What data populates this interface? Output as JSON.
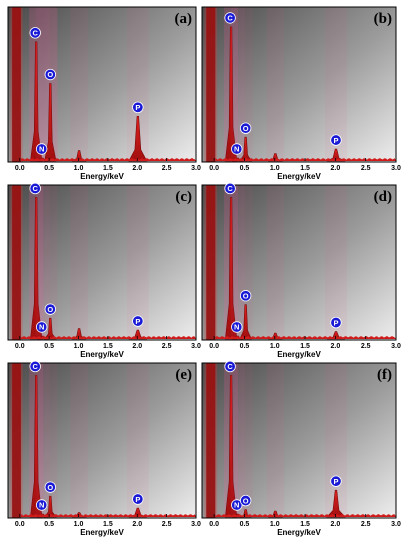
{
  "figure": {
    "x_axis_label": "Energy/keV",
    "x_ticks": [
      "0.0",
      "0.5",
      "1.0",
      "1.5",
      "2.0",
      "2.5",
      "3.0"
    ]
  },
  "colors": {
    "spectrum_fill": "#d11a1a",
    "spectrum_dark": "#7a0a0a",
    "marker_fill": "#1a1ad6",
    "bg_dark": "#4a4a4a",
    "bg_light": "#eeeeee"
  },
  "chart_data": [
    {
      "type": "area",
      "panel_label": "(a)",
      "xlabel": "Energy/keV",
      "xlim": [
        -0.2,
        3.0
      ],
      "ylim": [
        0,
        1
      ],
      "grid": false,
      "peaks": [
        {
          "element": "C",
          "energy_keV": 0.28,
          "height": 0.8
        },
        {
          "element": "N",
          "energy_keV": 0.39,
          "height": 0.02
        },
        {
          "element": "O",
          "energy_keV": 0.52,
          "height": 0.52
        },
        {
          "element": "",
          "energy_keV": 1.01,
          "height": 0.07
        },
        {
          "element": "P",
          "energy_keV": 2.01,
          "height": 0.3
        }
      ]
    },
    {
      "type": "area",
      "panel_label": "(b)",
      "xlabel": "Energy/keV",
      "xlim": [
        -0.2,
        3.0
      ],
      "ylim": [
        0,
        1
      ],
      "grid": false,
      "peaks": [
        {
          "element": "C",
          "energy_keV": 0.28,
          "height": 0.9
        },
        {
          "element": "N",
          "energy_keV": 0.39,
          "height": 0.02
        },
        {
          "element": "O",
          "energy_keV": 0.52,
          "height": 0.16
        },
        {
          "element": "",
          "energy_keV": 1.01,
          "height": 0.05
        },
        {
          "element": "P",
          "energy_keV": 2.01,
          "height": 0.08
        }
      ]
    },
    {
      "type": "area",
      "panel_label": "(c)",
      "xlabel": "Energy/keV",
      "xlim": [
        -0.2,
        3.0
      ],
      "ylim": [
        0,
        1
      ],
      "grid": false,
      "peaks": [
        {
          "element": "C",
          "energy_keV": 0.28,
          "height": 0.95
        },
        {
          "element": "N",
          "energy_keV": 0.39,
          "height": 0.02
        },
        {
          "element": "O",
          "energy_keV": 0.52,
          "height": 0.14
        },
        {
          "element": "",
          "energy_keV": 1.01,
          "height": 0.07
        },
        {
          "element": "P",
          "energy_keV": 2.01,
          "height": 0.06
        }
      ]
    },
    {
      "type": "area",
      "panel_label": "(d)",
      "xlabel": "Energy/keV",
      "xlim": [
        -0.2,
        3.0
      ],
      "ylim": [
        0,
        1
      ],
      "grid": false,
      "peaks": [
        {
          "element": "C",
          "energy_keV": 0.28,
          "height": 0.95
        },
        {
          "element": "N",
          "energy_keV": 0.39,
          "height": 0.02
        },
        {
          "element": "O",
          "energy_keV": 0.52,
          "height": 0.23
        },
        {
          "element": "",
          "energy_keV": 1.01,
          "height": 0.04
        },
        {
          "element": "P",
          "energy_keV": 2.01,
          "height": 0.05
        }
      ]
    },
    {
      "type": "area",
      "panel_label": "(e)",
      "xlabel": "Energy/keV",
      "xlim": [
        -0.2,
        3.0
      ],
      "ylim": [
        0,
        1
      ],
      "grid": false,
      "peaks": [
        {
          "element": "C",
          "energy_keV": 0.28,
          "height": 0.95
        },
        {
          "element": "N",
          "energy_keV": 0.39,
          "height": 0.02
        },
        {
          "element": "O",
          "energy_keV": 0.52,
          "height": 0.14
        },
        {
          "element": "",
          "energy_keV": 1.01,
          "height": 0.03
        },
        {
          "element": "P",
          "energy_keV": 2.01,
          "height": 0.06
        }
      ]
    },
    {
      "type": "area",
      "panel_label": "(f)",
      "xlabel": "Energy/keV",
      "xlim": [
        -0.2,
        3.0
      ],
      "ylim": [
        0,
        1
      ],
      "grid": false,
      "peaks": [
        {
          "element": "C",
          "energy_keV": 0.28,
          "height": 0.95
        },
        {
          "element": "N",
          "energy_keV": 0.39,
          "height": 0.02
        },
        {
          "element": "O",
          "energy_keV": 0.52,
          "height": 0.05
        },
        {
          "element": "",
          "energy_keV": 1.01,
          "height": 0.04
        },
        {
          "element": "P",
          "energy_keV": 2.01,
          "height": 0.18
        }
      ]
    }
  ]
}
